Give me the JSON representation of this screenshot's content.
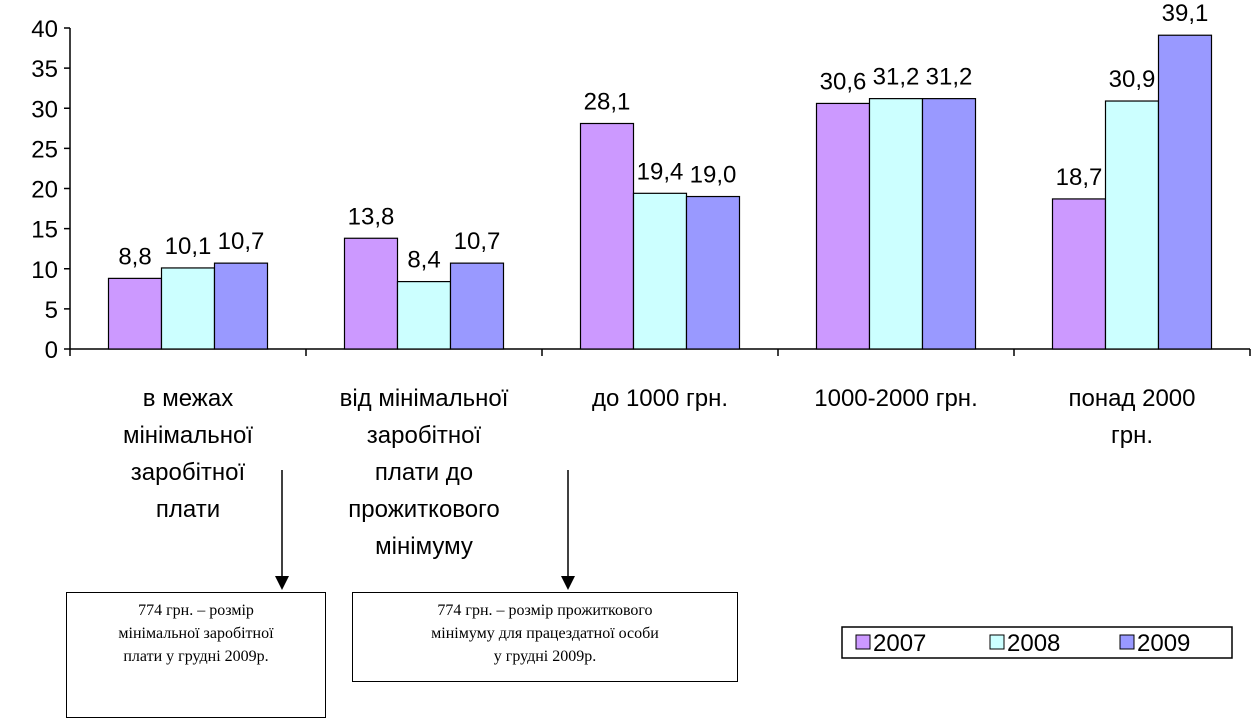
{
  "chart_data": {
    "type": "bar",
    "categories": [
      "в межах\nмінімальної\nзаробітної\nплати",
      "від мінімальної\nзаробітної\nплати до\nпрожиткового\nмінімуму",
      "до 1000 грн.",
      "1000-2000 грн.",
      "понад 2000\nгрн."
    ],
    "series": [
      {
        "name": "2007",
        "color": "#cc99ff",
        "values": [
          8.8,
          13.8,
          28.1,
          30.6,
          18.7
        ],
        "value_labels": [
          "8,8",
          "13,8",
          "28,1",
          "30,6",
          "18,7"
        ]
      },
      {
        "name": "2008",
        "color": "#ccffff",
        "values": [
          10.1,
          8.4,
          19.4,
          31.2,
          30.9
        ],
        "value_labels": [
          "10,1",
          "8,4",
          "19,4",
          "31,2",
          "30,9"
        ]
      },
      {
        "name": "2009",
        "color": "#9999ff",
        "values": [
          10.7,
          10.7,
          19.0,
          31.2,
          39.1
        ],
        "value_labels": [
          "10,7",
          "10,7",
          "19,0",
          "31,2",
          "39,1"
        ]
      }
    ],
    "ylim": [
      0,
      40
    ],
    "yticks": [
      0,
      5,
      10,
      15,
      20,
      25,
      30,
      35,
      40
    ],
    "legend": "bottom-right",
    "annotations": [
      "774 грн. – розмір\nмінімальної заробітної\nплати у грудні 2009р.",
      "774 грн. – розмір прожиткового\nмінімуму для працездатної особи\nу грудні 2009р."
    ]
  }
}
